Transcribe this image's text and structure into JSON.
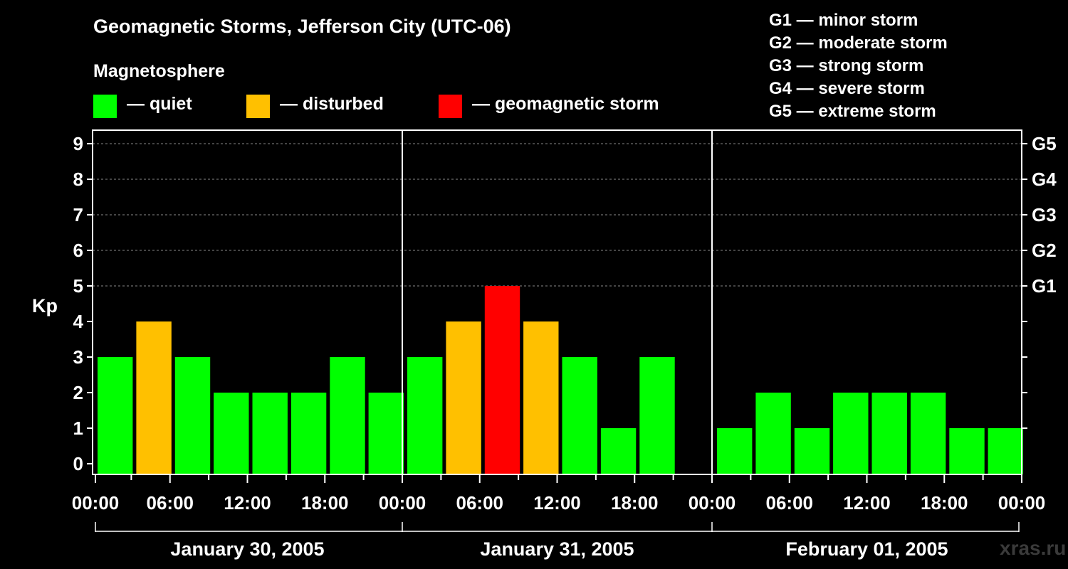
{
  "title": "Geomagnetic Storms, Jefferson City (UTC-06)",
  "subtitle": "Magnetosphere",
  "legend": [
    {
      "label": "— quiet",
      "color": "#00ff00"
    },
    {
      "label": "— disturbed",
      "color": "#ffc000"
    },
    {
      "label": "— geomagnetic storm",
      "color": "#ff0000"
    }
  ],
  "storm_scale": [
    "G1 — minor storm",
    "G2 — moderate storm",
    "G3 — strong storm",
    "G4 — severe storm",
    "G5 — extreme storm"
  ],
  "watermark": "xras.ru",
  "chart_data": {
    "type": "bar",
    "ylabel": "Kp",
    "ylim": [
      0,
      9
    ],
    "yticks": [
      "0",
      "1",
      "2",
      "3",
      "4",
      "5",
      "6",
      "7",
      "8",
      "9"
    ],
    "right_axis": {
      "ticks": [
        5,
        6,
        7,
        8,
        9
      ],
      "labels": [
        "G1",
        "G2",
        "G3",
        "G4",
        "G5"
      ]
    },
    "grid": "horizontal dashed, levels 5-9",
    "x_tick_labels": [
      "00:00",
      "06:00",
      "12:00",
      "18:00",
      "00:00",
      "06:00",
      "12:00",
      "18:00",
      "00:00",
      "06:00",
      "12:00",
      "18:00",
      "00:00"
    ],
    "days": [
      "January 30, 2005",
      "January 31, 2005",
      "February 01, 2005"
    ],
    "interval_hours": 3,
    "values": [
      [
        3,
        4,
        3,
        2,
        2,
        2,
        3,
        2
      ],
      [
        3,
        4,
        5,
        4,
        3,
        1,
        3,
        null
      ],
      [
        1,
        2,
        1,
        2,
        2,
        2,
        1,
        1
      ]
    ],
    "color_rule": {
      "quiet": "Kp<4",
      "disturbed": "Kp=4",
      "storm": "Kp>=5"
    },
    "colors": {
      "quiet": "#00ff00",
      "disturbed": "#ffc000",
      "storm": "#ff0000",
      "axis": "#ffffff",
      "grid": "#888888"
    }
  }
}
